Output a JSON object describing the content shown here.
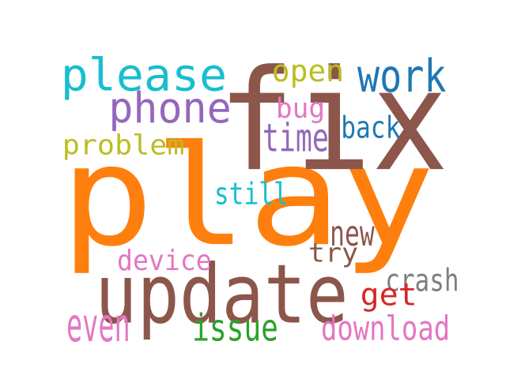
{
  "words": [
    {
      "text": "play",
      "color": "#ff7f0e"
    },
    {
      "text": "fix",
      "color": "#8c564b"
    },
    {
      "text": "update",
      "color": "#8c564b"
    },
    {
      "text": "please",
      "color": "#17becf"
    },
    {
      "text": "work",
      "color": "#1f77b4"
    },
    {
      "text": "phone",
      "color": "#9467bd"
    },
    {
      "text": "open",
      "color": "#bcbd22"
    },
    {
      "text": "bug",
      "color": "#e377c2"
    },
    {
      "text": "time",
      "color": "#9467bd"
    },
    {
      "text": "back",
      "color": "#1f77b4"
    },
    {
      "text": "problem",
      "color": "#bcbd22"
    },
    {
      "text": "still",
      "color": "#17becf"
    },
    {
      "text": "new",
      "color": "#8c564b"
    },
    {
      "text": "device",
      "color": "#e377c2"
    },
    {
      "text": "try",
      "color": "#8c564b"
    },
    {
      "text": "crash",
      "color": "#7f7f7f"
    },
    {
      "text": "get",
      "color": "#d62728"
    },
    {
      "text": "even",
      "color": "#e377c2"
    },
    {
      "text": "issue",
      "color": "#2ca02c"
    },
    {
      "text": "download",
      "color": "#e377c2"
    }
  ]
}
